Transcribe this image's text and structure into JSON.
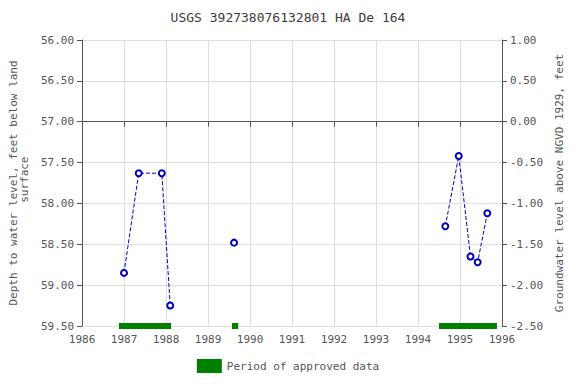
{
  "chart_data": {
    "type": "line",
    "title": "USGS 392738076132801 HA De 164",
    "ylabel": "Depth to water level, feet below land\n surface",
    "y2label": "Groundwater level above NGVD 1929, feet",
    "xlim": [
      1986,
      1996
    ],
    "ylim": [
      59.5,
      56.0
    ],
    "y2lim": [
      -2.5,
      1.0
    ],
    "xticks": [
      1986,
      1987,
      1988,
      1989,
      1990,
      1991,
      1992,
      1993,
      1994,
      1995,
      1996
    ],
    "yticks": [
      {
        "value": 56.0,
        "label": "56.00"
      },
      {
        "value": 56.5,
        "label": "56.50"
      },
      {
        "value": 57.0,
        "label": "57.00"
      },
      {
        "value": 57.5,
        "label": "57.50"
      },
      {
        "value": 58.0,
        "label": "58.00"
      },
      {
        "value": 58.5,
        "label": "58.50"
      },
      {
        "value": 59.0,
        "label": "59.00"
      },
      {
        "value": 59.5,
        "label": "59.50"
      }
    ],
    "y2ticks": [
      {
        "value": 1.0,
        "label": "1.00"
      },
      {
        "value": 0.5,
        "label": "0.50"
      },
      {
        "value": 0.0,
        "label": "0.00"
      },
      {
        "value": -0.5,
        "label": "-0.50"
      },
      {
        "value": -1.0,
        "label": "-1.00"
      },
      {
        "value": -1.5,
        "label": "-1.50"
      },
      {
        "value": -2.0,
        "label": "-2.00"
      },
      {
        "value": -2.5,
        "label": "-2.50"
      }
    ],
    "grid": true,
    "legend": "bottom",
    "series": [
      {
        "type": "line",
        "color": "#0000bb",
        "line_style": "dashed",
        "marker": "open_circle",
        "x": [
          1987.0,
          1987.35,
          1987.9,
          1988.1
        ],
        "values": [
          58.85,
          57.63,
          57.63,
          59.25
        ]
      },
      {
        "type": "line",
        "color": "#0000bb",
        "line_style": "dashed",
        "marker": "open_circle",
        "x": [
          1989.62
        ],
        "values": [
          58.48
        ]
      },
      {
        "type": "line",
        "color": "#0000bb",
        "line_style": "dashed",
        "marker": "open_circle",
        "x": [
          1994.65,
          1994.97,
          1995.25,
          1995.42,
          1995.65
        ],
        "values": [
          58.28,
          57.42,
          58.65,
          58.72,
          58.12
        ]
      },
      {
        "type": "span",
        "name": "Period of approved data",
        "color": "#008000",
        "x_start": [
          1986.88,
          1989.57,
          1994.5
        ],
        "x_end": [
          1988.12,
          1989.72,
          1995.88
        ]
      }
    ]
  }
}
